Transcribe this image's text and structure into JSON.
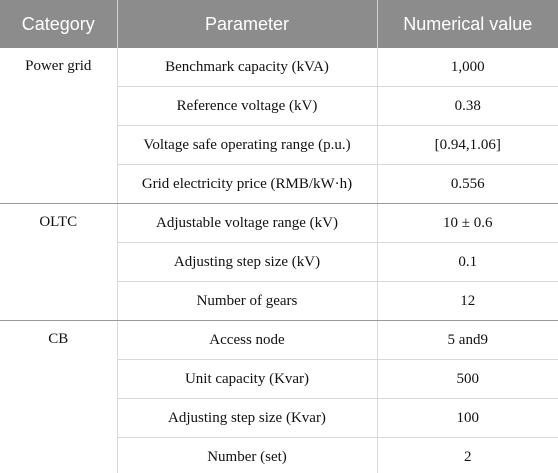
{
  "table": {
    "header": [
      "Category",
      "Parameter",
      "Numerical value"
    ],
    "groups": [
      {
        "category": "Power grid",
        "rows": [
          [
            "Benchmark capacity (kVA)",
            "1,000"
          ],
          [
            "Reference voltage (kV)",
            "0.38"
          ],
          [
            "Voltage safe operating range (p.u.)",
            "[0.94,1.06]"
          ],
          [
            "Grid electricity price (RMB/kW·h)",
            "0.556"
          ]
        ]
      },
      {
        "category": "OLTC",
        "rows": [
          [
            "Adjustable voltage range (kV)",
            "10 ± 0.6"
          ],
          [
            "Adjusting step size (kV)",
            "0.1"
          ],
          [
            "Number of gears",
            "12"
          ]
        ]
      },
      {
        "category": "CB",
        "rows": [
          [
            "Access node",
            "5 and9"
          ],
          [
            "Unit capacity (Kvar)",
            "500"
          ],
          [
            "Adjusting step size (Kvar)",
            "100"
          ],
          [
            "Number (set)",
            "2"
          ]
        ]
      }
    ]
  }
}
